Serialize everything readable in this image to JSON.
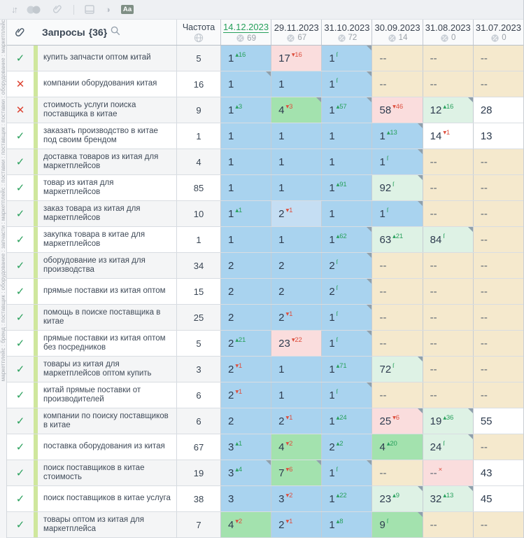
{
  "toolbar": {
    "sort_glyph": "↓↑",
    "contrast_glyph": "◑",
    "aa_label": "Аа"
  },
  "header": {
    "queries_label": "Запросы",
    "queries_count": "{36}",
    "frequency_label": "Частота"
  },
  "dates": [
    {
      "label": "14.12.2023",
      "coverage": "69",
      "active": true
    },
    {
      "label": "29.11.2023",
      "coverage": "67",
      "active": false
    },
    {
      "label": "31.10.2023",
      "coverage": "72",
      "active": false
    },
    {
      "label": "30.09.2023",
      "coverage": "14",
      "active": false
    },
    {
      "label": "31.08.2023",
      "coverage": "0",
      "active": false
    },
    {
      "label": "31.07.2023",
      "coverage": "0",
      "active": false
    }
  ],
  "groups_strip": "маркетплейс : бренд : поставщик : оборудование : запчасти : маркетплейс : поставки : поставщик : поставки : оборудование : маркетплейс",
  "glyphs": {
    "check": "✓",
    "cross": "✕"
  },
  "colors": {
    "blue": "#a9d3ef",
    "bluel": "#c5def3",
    "green": "#a3e2ae",
    "mint": "#def2e5",
    "pink": "#fadddd",
    "white": "#ffffff",
    "beige": "#f5e9cd",
    "up": "#27a05c",
    "down": "#dd4f3e",
    "date_link": "#27a05c",
    "group_stripe": "#cfe79d"
  },
  "rows": [
    {
      "status": "check",
      "query": "купить запчасти оптом китай",
      "frequency": "5",
      "cells": [
        {
          "v": "1",
          "s": "▴16",
          "c": "up",
          "bg": "blue"
        },
        {
          "v": "17",
          "s": "▾16",
          "c": "down",
          "bg": "pink"
        },
        {
          "v": "1",
          "s": "ſ",
          "c": "new",
          "bg": "blue",
          "t": true
        },
        {
          "v": "--",
          "bg": "beige"
        },
        {
          "v": "--",
          "bg": "beige"
        },
        {
          "v": "--",
          "bg": "beige"
        }
      ]
    },
    {
      "status": "cross",
      "query": "компании оборудования китая",
      "frequency": "16",
      "cells": [
        {
          "v": "1",
          "bg": "blue",
          "t": true
        },
        {
          "v": "1",
          "bg": "blue"
        },
        {
          "v": "1",
          "s": "ſ",
          "c": "new",
          "bg": "blue",
          "t": true
        },
        {
          "v": "--",
          "bg": "beige"
        },
        {
          "v": "--",
          "bg": "beige"
        },
        {
          "v": "--",
          "bg": "beige"
        }
      ]
    },
    {
      "status": "cross",
      "query": "стоимость услуги поиска поставщика в китае",
      "frequency": "9",
      "cells": [
        {
          "v": "1",
          "s": "▴3",
          "c": "up",
          "bg": "blue"
        },
        {
          "v": "4",
          "s": "▾3",
          "c": "down",
          "bg": "green",
          "t": true
        },
        {
          "v": "1",
          "s": "▴57",
          "c": "up",
          "bg": "blue",
          "t": true
        },
        {
          "v": "58",
          "s": "▾46",
          "c": "down",
          "bg": "pink"
        },
        {
          "v": "12",
          "s": "▴16",
          "c": "up",
          "bg": "mint",
          "t": true
        },
        {
          "v": "28",
          "bg": "white"
        }
      ]
    },
    {
      "status": "check",
      "query": "заказать производство в китае под своим брендом",
      "frequency": "1",
      "cells": [
        {
          "v": "1",
          "bg": "blue"
        },
        {
          "v": "1",
          "bg": "blue"
        },
        {
          "v": "1",
          "bg": "blue"
        },
        {
          "v": "1",
          "s": "▴13",
          "c": "up",
          "bg": "blue",
          "t": true
        },
        {
          "v": "14",
          "s": "▾1",
          "c": "down",
          "bg": "white"
        },
        {
          "v": "13",
          "bg": "white"
        }
      ]
    },
    {
      "status": "check",
      "query": "доставка товаров из китая для маркетплейсов",
      "frequency": "4",
      "cells": [
        {
          "v": "1",
          "bg": "blue"
        },
        {
          "v": "1",
          "bg": "blue"
        },
        {
          "v": "1",
          "bg": "blue"
        },
        {
          "v": "1",
          "s": "ſ",
          "c": "new",
          "bg": "blue",
          "t": true
        },
        {
          "v": "--",
          "bg": "beige"
        },
        {
          "v": "--",
          "bg": "beige"
        }
      ]
    },
    {
      "status": "check",
      "query": "товар из китая для маркетплейсов",
      "frequency": "85",
      "cells": [
        {
          "v": "1",
          "bg": "blue"
        },
        {
          "v": "1",
          "bg": "blue"
        },
        {
          "v": "1",
          "s": "▴91",
          "c": "up",
          "bg": "blue"
        },
        {
          "v": "92",
          "s": "ſ",
          "c": "new",
          "bg": "mint",
          "t": true
        },
        {
          "v": "--",
          "bg": "beige"
        },
        {
          "v": "--",
          "bg": "beige"
        }
      ]
    },
    {
      "status": "check",
      "query": "заказ товара из китая для маркетплейсов",
      "frequency": "10",
      "cells": [
        {
          "v": "1",
          "s": "▴1",
          "c": "up",
          "bg": "blue"
        },
        {
          "v": "2",
          "s": "▾1",
          "c": "down",
          "bg": "bluel"
        },
        {
          "v": "1",
          "bg": "blue"
        },
        {
          "v": "1",
          "s": "ſ",
          "c": "new",
          "bg": "blue",
          "t": true
        },
        {
          "v": "--",
          "bg": "beige"
        },
        {
          "v": "--",
          "bg": "beige"
        }
      ]
    },
    {
      "status": "check",
      "query": "закупка товара в китае для маркетплейсов",
      "frequency": "1",
      "cells": [
        {
          "v": "1",
          "bg": "blue"
        },
        {
          "v": "1",
          "bg": "blue"
        },
        {
          "v": "1",
          "s": "▴62",
          "c": "up",
          "bg": "blue",
          "t": true
        },
        {
          "v": "63",
          "s": "▴21",
          "c": "up",
          "bg": "mint"
        },
        {
          "v": "84",
          "s": "ſ",
          "c": "new",
          "bg": "mint",
          "t": true
        },
        {
          "v": "--",
          "bg": "beige"
        }
      ]
    },
    {
      "status": "check",
      "query": "оборудование из китая для производства",
      "frequency": "34",
      "cells": [
        {
          "v": "2",
          "bg": "blue"
        },
        {
          "v": "2",
          "bg": "blue"
        },
        {
          "v": "2",
          "s": "ſ",
          "c": "new",
          "bg": "blue",
          "t": true
        },
        {
          "v": "--",
          "bg": "beige"
        },
        {
          "v": "--",
          "bg": "beige"
        },
        {
          "v": "--",
          "bg": "beige"
        }
      ]
    },
    {
      "status": "check",
      "query": "прямые поставки из китая оптом",
      "frequency": "15",
      "cells": [
        {
          "v": "2",
          "bg": "blue"
        },
        {
          "v": "2",
          "bg": "blue"
        },
        {
          "v": "2",
          "s": "ſ",
          "c": "new",
          "bg": "blue",
          "t": true
        },
        {
          "v": "--",
          "bg": "beige"
        },
        {
          "v": "--",
          "bg": "beige"
        },
        {
          "v": "--",
          "bg": "beige"
        }
      ]
    },
    {
      "status": "check",
      "query": "помощь в поиске поставщика в китае",
      "frequency": "25",
      "cells": [
        {
          "v": "2",
          "bg": "blue"
        },
        {
          "v": "2",
          "s": "▾1",
          "c": "down",
          "bg": "blue"
        },
        {
          "v": "1",
          "s": "ſ",
          "c": "new",
          "bg": "blue",
          "t": true
        },
        {
          "v": "--",
          "bg": "beige"
        },
        {
          "v": "--",
          "bg": "beige"
        },
        {
          "v": "--",
          "bg": "beige"
        }
      ]
    },
    {
      "status": "check",
      "query": "прямые поставки из китая оптом без посредников",
      "frequency": "5",
      "cells": [
        {
          "v": "2",
          "s": "▴21",
          "c": "up",
          "bg": "blue"
        },
        {
          "v": "23",
          "s": "▾22",
          "c": "down",
          "bg": "pink"
        },
        {
          "v": "1",
          "s": "ſ",
          "c": "new",
          "bg": "blue",
          "t": true
        },
        {
          "v": "--",
          "bg": "beige"
        },
        {
          "v": "--",
          "bg": "beige"
        },
        {
          "v": "--",
          "bg": "beige"
        }
      ]
    },
    {
      "status": "check",
      "query": "товары из китая для маркетплейсов оптом купить",
      "frequency": "3",
      "cells": [
        {
          "v": "2",
          "s": "▾1",
          "c": "down",
          "bg": "blue"
        },
        {
          "v": "1",
          "bg": "blue"
        },
        {
          "v": "1",
          "s": "▴71",
          "c": "up",
          "bg": "blue"
        },
        {
          "v": "72",
          "s": "ſ",
          "c": "new",
          "bg": "mint",
          "t": true
        },
        {
          "v": "--",
          "bg": "beige"
        },
        {
          "v": "--",
          "bg": "beige"
        }
      ]
    },
    {
      "status": "check",
      "query": "китай прямые поставки от производителей",
      "frequency": "6",
      "cells": [
        {
          "v": "2",
          "s": "▾1",
          "c": "down",
          "bg": "blue"
        },
        {
          "v": "1",
          "bg": "blue"
        },
        {
          "v": "1",
          "s": "ſ",
          "c": "new",
          "bg": "blue",
          "t": true
        },
        {
          "v": "--",
          "bg": "beige"
        },
        {
          "v": "--",
          "bg": "beige"
        },
        {
          "v": "--",
          "bg": "beige"
        }
      ]
    },
    {
      "status": "check",
      "query": "компании по поиску поставщиков в китае",
      "frequency": "6",
      "cells": [
        {
          "v": "2",
          "bg": "blue"
        },
        {
          "v": "2",
          "s": "▾1",
          "c": "down",
          "bg": "blue"
        },
        {
          "v": "1",
          "s": "▴24",
          "c": "up",
          "bg": "blue"
        },
        {
          "v": "25",
          "s": "▾6",
          "c": "down",
          "bg": "pink",
          "t": true
        },
        {
          "v": "19",
          "s": "▴36",
          "c": "up",
          "bg": "mint",
          "t": true
        },
        {
          "v": "55",
          "bg": "white"
        }
      ]
    },
    {
      "status": "check",
      "query": "поставка оборудования из китая",
      "frequency": "67",
      "cells": [
        {
          "v": "3",
          "s": "▴1",
          "c": "up",
          "bg": "blue"
        },
        {
          "v": "4",
          "s": "▾2",
          "c": "down",
          "bg": "green"
        },
        {
          "v": "2",
          "s": "▴2",
          "c": "up",
          "bg": "blue"
        },
        {
          "v": "4",
          "s": "▴20",
          "c": "up",
          "bg": "green"
        },
        {
          "v": "24",
          "s": "ſ",
          "c": "new",
          "bg": "mint",
          "t": true
        },
        {
          "v": "--",
          "bg": "beige"
        }
      ]
    },
    {
      "status": "check",
      "query": "поиск поставщиков в китае стоимость",
      "frequency": "19",
      "cells": [
        {
          "v": "3",
          "s": "▴4",
          "c": "up",
          "bg": "blue",
          "t": true
        },
        {
          "v": "7",
          "s": "▾6",
          "c": "down",
          "bg": "green",
          "t": true
        },
        {
          "v": "1",
          "s": "ſ",
          "c": "new",
          "bg": "blue",
          "t": true
        },
        {
          "v": "--",
          "bg": "beige"
        },
        {
          "v": "--",
          "s": "×",
          "c": "out",
          "bg": "pink"
        },
        {
          "v": "43",
          "bg": "white"
        }
      ]
    },
    {
      "status": "check",
      "query": "поиск поставщиков в китае услуга",
      "frequency": "38",
      "cells": [
        {
          "v": "3",
          "bg": "blue"
        },
        {
          "v": "3",
          "s": "▾2",
          "c": "down",
          "bg": "blue"
        },
        {
          "v": "1",
          "s": "▴22",
          "c": "up",
          "bg": "blue"
        },
        {
          "v": "23",
          "s": "▴9",
          "c": "up",
          "bg": "mint",
          "t": true
        },
        {
          "v": "32",
          "s": "▴13",
          "c": "up",
          "bg": "mint",
          "t": true
        },
        {
          "v": "45",
          "bg": "white"
        }
      ]
    },
    {
      "status": "check",
      "query": "товары оптом из китая для маркетплейса",
      "frequency": "7",
      "cells": [
        {
          "v": "4",
          "s": "▾2",
          "c": "down",
          "bg": "green"
        },
        {
          "v": "2",
          "s": "▾1",
          "c": "down",
          "bg": "blue"
        },
        {
          "v": "1",
          "s": "▴8",
          "c": "up",
          "bg": "blue"
        },
        {
          "v": "9",
          "s": "ſ",
          "c": "new",
          "bg": "green",
          "t": true
        },
        {
          "v": "--",
          "bg": "beige"
        },
        {
          "v": "--",
          "bg": "beige"
        }
      ]
    }
  ]
}
